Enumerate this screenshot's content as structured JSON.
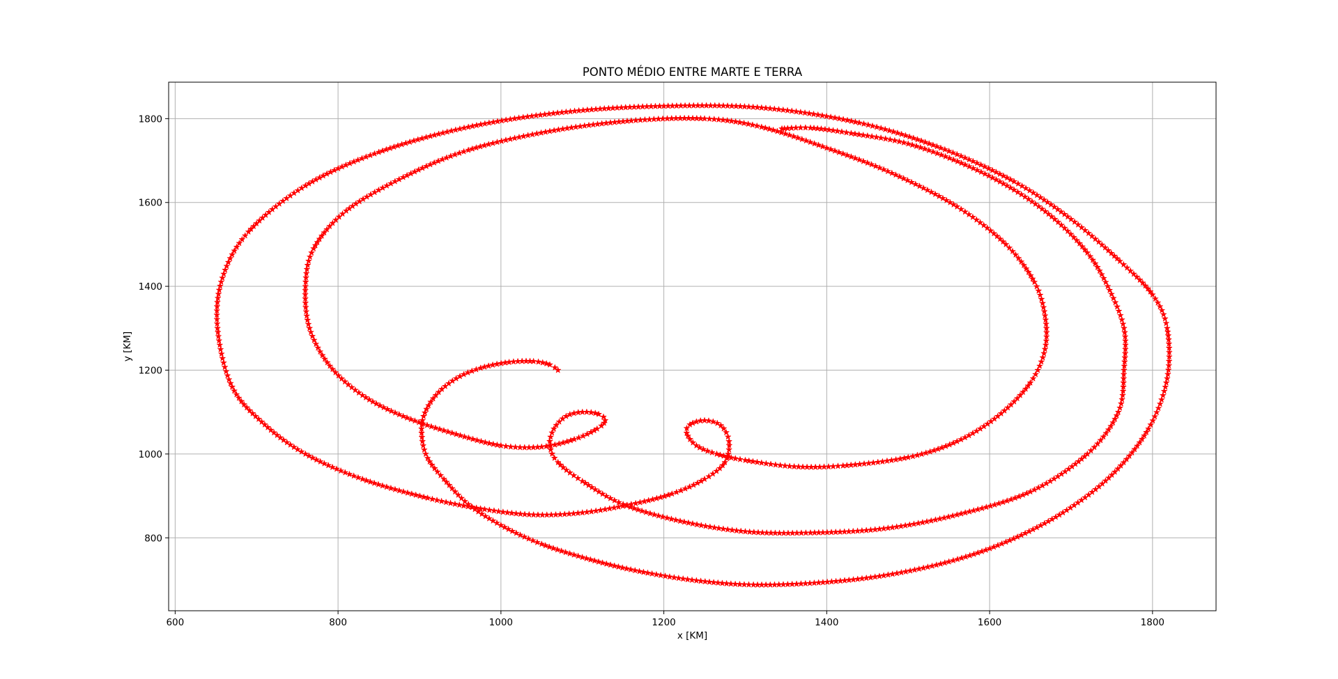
{
  "chart_data": {
    "type": "scatter",
    "title": "PONTO MÉDIO ENTRE MARTE E TERRA",
    "xlabel": "x [KM]",
    "ylabel": "y [KM]",
    "xlim": [
      592,
      1878
    ],
    "ylim": [
      626,
      1887
    ],
    "xticks": [
      600,
      800,
      1000,
      1200,
      1400,
      1600,
      1800
    ],
    "yticks": [
      800,
      1000,
      1200,
      1400,
      1600,
      1800
    ],
    "xtick_labels": [
      "600",
      "800",
      "1000",
      "1200",
      "1400",
      "1600",
      "1800"
    ],
    "ytick_labels": [
      "800",
      "1000",
      "1200",
      "1400",
      "1600",
      "1800"
    ],
    "grid": true,
    "marker": "star",
    "series": [
      {
        "color": "#ff0000",
        "points": [
          [
            1070,
            1200
          ],
          [
            1060,
            1213
          ],
          [
            1040,
            1221
          ],
          [
            1010,
            1219
          ],
          [
            975,
            1205
          ],
          [
            945,
            1180
          ],
          [
            920,
            1140
          ],
          [
            905,
            1090
          ],
          [
            903,
            1040
          ],
          [
            910,
            990
          ],
          [
            930,
            940
          ],
          [
            960,
            880
          ],
          [
            1000,
            830
          ],
          [
            1050,
            785
          ],
          [
            1110,
            748
          ],
          [
            1170,
            720
          ],
          [
            1240,
            698
          ],
          [
            1310,
            688
          ],
          [
            1390,
            693
          ],
          [
            1470,
            710
          ],
          [
            1550,
            743
          ],
          [
            1620,
            790
          ],
          [
            1690,
            860
          ],
          [
            1750,
            950
          ],
          [
            1795,
            1060
          ],
          [
            1818,
            1180
          ],
          [
            1818,
            1300
          ],
          [
            1800,
            1380
          ],
          [
            1760,
            1460
          ],
          [
            1700,
            1560
          ],
          [
            1630,
            1650
          ],
          [
            1540,
            1730
          ],
          [
            1440,
            1790
          ],
          [
            1320,
            1826
          ],
          [
            1200,
            1830
          ],
          [
            1080,
            1816
          ],
          [
            960,
            1780
          ],
          [
            850,
            1720
          ],
          [
            760,
            1640
          ],
          [
            690,
            1530
          ],
          [
            658,
            1420
          ],
          [
            652,
            1300
          ],
          [
            670,
            1160
          ],
          [
            710,
            1070
          ],
          [
            760,
            1000
          ],
          [
            830,
            940
          ],
          [
            910,
            895
          ],
          [
            980,
            868
          ],
          [
            1040,
            855
          ],
          [
            1100,
            860
          ],
          [
            1160,
            880
          ],
          [
            1210,
            905
          ],
          [
            1250,
            940
          ],
          [
            1275,
            980
          ],
          [
            1280,
            1030
          ],
          [
            1270,
            1068
          ],
          [
            1250,
            1080
          ],
          [
            1232,
            1070
          ],
          [
            1228,
            1050
          ],
          [
            1240,
            1020
          ],
          [
            1265,
            1000
          ],
          [
            1300,
            985
          ],
          [
            1360,
            970
          ],
          [
            1420,
            972
          ],
          [
            1500,
            992
          ],
          [
            1560,
            1030
          ],
          [
            1610,
            1090
          ],
          [
            1650,
            1170
          ],
          [
            1668,
            1250
          ],
          [
            1668,
            1330
          ],
          [
            1655,
            1410
          ],
          [
            1620,
            1500
          ],
          [
            1560,
            1590
          ],
          [
            1480,
            1670
          ],
          [
            1400,
            1730
          ],
          [
            1320,
            1780
          ],
          [
            1250,
            1800
          ],
          [
            1160,
            1795
          ],
          [
            1060,
            1770
          ],
          [
            960,
            1725
          ],
          [
            880,
            1660
          ],
          [
            810,
            1580
          ],
          [
            770,
            1490
          ],
          [
            760,
            1400
          ],
          [
            765,
            1300
          ],
          [
            790,
            1210
          ],
          [
            830,
            1140
          ],
          [
            880,
            1090
          ],
          [
            940,
            1050
          ],
          [
            1000,
            1020
          ],
          [
            1050,
            1017
          ],
          [
            1090,
            1035
          ],
          [
            1118,
            1060
          ],
          [
            1128,
            1080
          ],
          [
            1120,
            1095
          ],
          [
            1100,
            1100
          ],
          [
            1080,
            1090
          ],
          [
            1065,
            1060
          ],
          [
            1060,
            1020
          ],
          [
            1070,
            980
          ],
          [
            1100,
            935
          ],
          [
            1150,
            880
          ],
          [
            1220,
            840
          ],
          [
            1300,
            815
          ],
          [
            1380,
            812
          ],
          [
            1470,
            822
          ],
          [
            1560,
            855
          ],
          [
            1650,
            910
          ],
          [
            1720,
            1000
          ],
          [
            1758,
            1100
          ],
          [
            1765,
            1200
          ],
          [
            1765,
            1300
          ],
          [
            1745,
            1400
          ],
          [
            1720,
            1480
          ],
          [
            1680,
            1560
          ],
          [
            1630,
            1630
          ],
          [
            1570,
            1690
          ],
          [
            1500,
            1740
          ],
          [
            1430,
            1765
          ],
          [
            1380,
            1778
          ],
          [
            1345,
            1776
          ]
        ]
      }
    ]
  }
}
